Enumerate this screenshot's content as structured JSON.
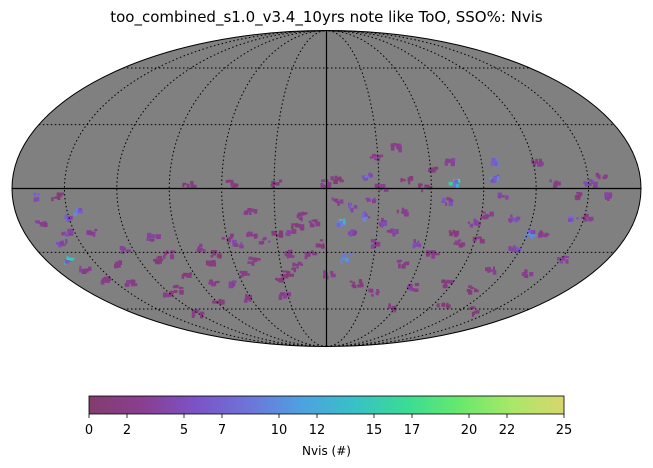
{
  "chart_data": {
    "type": "heatmap",
    "projection": "mollweide",
    "title": "too_combined_s1.0_v3.4_10yrs note like ToO, SSO%: Nvis",
    "background_color": "#808080",
    "graticule": {
      "ra_spacing_deg": 30,
      "dec_spacing_deg": 30,
      "style": "dotted"
    },
    "colorbar": {
      "label": "Nvis (#)",
      "range": [
        0,
        25
      ],
      "ticks": [
        0,
        2,
        5,
        7,
        10,
        12,
        15,
        17,
        20,
        22,
        25
      ],
      "colormap": [
        "#833c6f",
        "#8a3e90",
        "#7c52c6",
        "#6f73d9",
        "#4fa0e0",
        "#38c0c8",
        "#3adb96",
        "#67e86e",
        "#a8e868",
        "#d8d66c"
      ]
    },
    "points": [
      {
        "lon": 161,
        "lat": -3,
        "value": 4
      },
      {
        "lon": 157,
        "lat": 6,
        "value": 3
      },
      {
        "lon": 150,
        "lat": 3,
        "value": 5
      },
      {
        "lon": 145,
        "lat": -3,
        "value": 2
      },
      {
        "lon": 130,
        "lat": 3,
        "value": 4
      },
      {
        "lon": 150,
        "lat": -13,
        "value": 3
      },
      {
        "lon": 143,
        "lat": -13,
        "value": 8
      },
      {
        "lon": 128,
        "lat": -20,
        "value": 3
      },
      {
        "lon": 115,
        "lat": -28,
        "value": 6
      },
      {
        "lon": 108,
        "lat": -38,
        "value": 3
      },
      {
        "lon": 150,
        "lat": -33,
        "value": 4
      },
      {
        "lon": 135,
        "lat": -40,
        "value": 3
      },
      {
        "lon": 105,
        "lat": -48,
        "value": 2
      },
      {
        "lon": 98,
        "lat": -58,
        "value": 2
      },
      {
        "lon": 122,
        "lat": 13,
        "value": 3
      },
      {
        "lon": 98,
        "lat": 13,
        "value": 9
      },
      {
        "lon": 95,
        "lat": 5,
        "value": 12
      },
      {
        "lon": 100,
        "lat": -3,
        "value": 5
      },
      {
        "lon": 120,
        "lat": -20,
        "value": 10
      },
      {
        "lon": 108,
        "lat": -13,
        "value": 6
      },
      {
        "lon": 92,
        "lat": -12,
        "value": 3
      },
      {
        "lon": 70,
        "lat": 13,
        "value": 4
      },
      {
        "lon": 72,
        "lat": 3,
        "value": 17
      },
      {
        "lon": 68,
        "lat": -5,
        "value": 6
      },
      {
        "lon": 55,
        "lat": 1,
        "value": 2
      },
      {
        "lon": 43,
        "lat": -10,
        "value": 3
      },
      {
        "lon": 38,
        "lat": -20,
        "value": 5
      },
      {
        "lon": 53,
        "lat": -25,
        "value": 5
      },
      {
        "lon": 48,
        "lat": -35,
        "value": 3
      },
      {
        "lon": 62,
        "lat": -47,
        "value": 4
      },
      {
        "lon": 55,
        "lat": -58,
        "value": 3
      },
      {
        "lon": 35,
        "lat": -50,
        "value": 3
      },
      {
        "lon": 30,
        "lat": 1,
        "value": 3
      },
      {
        "lon": 25,
        "lat": -5,
        "value": 6
      },
      {
        "lon": 22,
        "lat": -12,
        "value": 10
      },
      {
        "lon": 15,
        "lat": -20,
        "value": 6
      },
      {
        "lon": 5,
        "lat": -5,
        "value": 4
      },
      {
        "lon": 0,
        "lat": -40,
        "value": 3
      },
      {
        "lon": 12,
        "lat": -32,
        "value": 14
      },
      {
        "lon": 14,
        "lat": -8,
        "value": 9
      },
      {
        "lon": 8,
        "lat": -15,
        "value": 13
      },
      {
        "lon": 28,
        "lat": 15,
        "value": 3
      },
      {
        "lon": 22,
        "lat": 6,
        "value": 9
      },
      {
        "lon": 5,
        "lat": 5,
        "value": 2
      },
      {
        "lon": -2,
        "lat": 3,
        "value": 3
      },
      {
        "lon": -8,
        "lat": -15,
        "value": 3
      },
      {
        "lon": -18,
        "lat": -17,
        "value": 2
      },
      {
        "lon": -22,
        "lat": -20,
        "value": 4
      },
      {
        "lon": -30,
        "lat": -20,
        "value": 2
      },
      {
        "lon": -38,
        "lat": -24,
        "value": 4
      },
      {
        "lon": -20,
        "lat": -36,
        "value": 3
      },
      {
        "lon": -28,
        "lat": -40,
        "value": 2
      },
      {
        "lon": -33,
        "lat": -42,
        "value": 3
      },
      {
        "lon": -35,
        "lat": -52,
        "value": 4
      },
      {
        "lon": -45,
        "lat": -20,
        "value": 3
      },
      {
        "lon": -55,
        "lat": -25,
        "value": 5
      },
      {
        "lon": -60,
        "lat": -22,
        "value": 3
      },
      {
        "lon": -48,
        "lat": -33,
        "value": 3
      },
      {
        "lon": -58,
        "lat": -40,
        "value": 3
      },
      {
        "lon": -68,
        "lat": -45,
        "value": 4
      },
      {
        "lon": -65,
        "lat": -53,
        "value": 3
      },
      {
        "lon": -70,
        "lat": -30,
        "value": 2
      },
      {
        "lon": -78,
        "lat": -27,
        "value": 3
      },
      {
        "lon": -75,
        "lat": -35,
        "value": 2
      },
      {
        "lon": -82,
        "lat": -45,
        "value": 3
      },
      {
        "lon": -95,
        "lat": -40,
        "value": 2
      },
      {
        "lon": -100,
        "lat": -30,
        "value": 3
      },
      {
        "lon": -105,
        "lat": -22,
        "value": 4
      },
      {
        "lon": -108,
        "lat": -33,
        "value": 2
      },
      {
        "lon": -110,
        "lat": -48,
        "value": 2
      },
      {
        "lon": -120,
        "lat": -50,
        "value": 3
      },
      {
        "lon": -125,
        "lat": -28,
        "value": 4
      },
      {
        "lon": -135,
        "lat": -35,
        "value": 3
      },
      {
        "lon": -140,
        "lat": -45,
        "value": 3
      },
      {
        "lon": -155,
        "lat": -43,
        "value": 3
      },
      {
        "lon": -160,
        "lat": -37,
        "value": 4
      },
      {
        "lon": -140,
        "lat": -20,
        "value": 4
      },
      {
        "lon": -145,
        "lat": -10,
        "value": 10
      },
      {
        "lon": -150,
        "lat": -13,
        "value": 7
      },
      {
        "lon": -155,
        "lat": -20,
        "value": 5
      },
      {
        "lon": -162,
        "lat": -25,
        "value": 6
      },
      {
        "lon": -165,
        "lat": -33,
        "value": 15
      },
      {
        "lon": -168,
        "lat": -15,
        "value": 4
      },
      {
        "lon": -155,
        "lat": -3,
        "value": 2
      },
      {
        "lon": -168,
        "lat": -3,
        "value": 8
      },
      {
        "lon": -55,
        "lat": 3,
        "value": 2
      },
      {
        "lon": -30,
        "lat": 3,
        "value": 2
      },
      {
        "lon": -15,
        "lat": -12,
        "value": 3
      },
      {
        "lon": -5,
        "lat": -25,
        "value": 2
      },
      {
        "lon": -45,
        "lat": -10,
        "value": 3
      },
      {
        "lon": -80,
        "lat": 3,
        "value": 2
      },
      {
        "lon": 40,
        "lat": 20,
        "value": 3
      },
      {
        "lon": 65,
        "lat": -30,
        "value": 3
      },
      {
        "lon": 75,
        "lat": -20,
        "value": 2
      },
      {
        "lon": 80,
        "lat": -25,
        "value": 3
      },
      {
        "lon": 85,
        "lat": -15,
        "value": 4
      },
      {
        "lon": 90,
        "lat": -23,
        "value": 3
      },
      {
        "lon": 33,
        "lat": -15,
        "value": 5
      },
      {
        "lon": 28,
        "lat": -25,
        "value": 4
      },
      {
        "lon": -12,
        "lat": -30,
        "value": 3
      },
      {
        "lon": -25,
        "lat": -30,
        "value": 4
      },
      {
        "lon": 20,
        "lat": -45,
        "value": 2
      },
      {
        "lon": -90,
        "lat": -55,
        "value": 2
      },
      {
        "lon": 85,
        "lat": -45,
        "value": 2
      },
      {
        "lon": -120,
        "lat": -62,
        "value": 2
      },
      {
        "lon": 130,
        "lat": -60,
        "value": 2
      },
      {
        "lon": 45,
        "lat": 5,
        "value": 2
      },
      {
        "lon": 60,
        "lat": 10,
        "value": 2
      }
    ]
  }
}
